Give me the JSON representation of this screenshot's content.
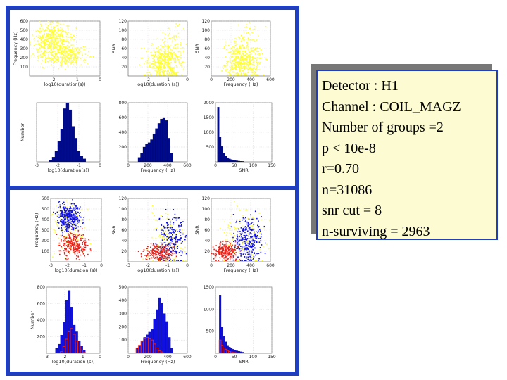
{
  "info": {
    "detector": "Detector : H1",
    "channel": "Channel : COIL_MAGZ",
    "groups": "Number of groups =2",
    "p": "p < 10e-8",
    "r": "r=0.70",
    "n": "n=31086",
    "snr_cut": "snr cut = 8",
    "surviving": "n-surviving = 2963"
  },
  "colors": {
    "frame": "#1f3fbf",
    "yellow": "#ffff33",
    "blue": "#1010e0",
    "red": "#e8221b",
    "dark_blue": "#000a8c",
    "info_bg": "#fcfbd2"
  },
  "chart_data": [
    {
      "id": "t1",
      "type": "scatter",
      "xlabel": "log10(duration(s))",
      "ylabel": "Frequency (Hz)",
      "xticks": [
        "-2",
        "-1",
        "0"
      ],
      "yticks": [
        "100",
        "200",
        "300",
        "400",
        "500",
        "600"
      ],
      "xlim": [
        -3,
        0
      ],
      "ylim": [
        0,
        600
      ],
      "series": [
        {
          "color": "yellow",
          "clusters": [
            {
              "x": -2,
              "y": 350,
              "sx": 0.4,
              "sy": 110,
              "n": 520
            },
            {
              "x": -1.2,
              "y": 220,
              "sx": 0.35,
              "sy": 60,
              "n": 160
            }
          ]
        }
      ]
    },
    {
      "id": "t2",
      "type": "scatter",
      "xlabel": "log10(duration (s))",
      "ylabel": "SNR",
      "xticks": [
        "-2",
        "-1",
        "0"
      ],
      "yticks": [
        "20",
        "40",
        "60",
        "80",
        "100",
        "120"
      ],
      "xlim": [
        -3,
        0
      ],
      "ylim": [
        0,
        120
      ],
      "series": [
        {
          "color": "yellow",
          "clusters": [
            {
              "x": -1.2,
              "y": 30,
              "sx": 0.45,
              "sy": 18,
              "n": 380
            },
            {
              "x": -0.7,
              "y": 70,
              "sx": 0.35,
              "sy": 25,
              "n": 70
            }
          ]
        }
      ]
    },
    {
      "id": "t3",
      "type": "scatter",
      "xlabel": "Frequency (Hz)",
      "ylabel": "SNR",
      "xticks": [
        "0",
        "200",
        "400",
        "600"
      ],
      "yticks": [
        "20",
        "40",
        "60",
        "80",
        "100",
        "120"
      ],
      "xlim": [
        0,
        600
      ],
      "ylim": [
        0,
        120
      ],
      "series": [
        {
          "color": "yellow",
          "clusters": [
            {
              "x": 320,
              "y": 35,
              "sx": 90,
              "sy": 20,
              "n": 420
            },
            {
              "x": 380,
              "y": 80,
              "sx": 70,
              "sy": 25,
              "n": 60
            }
          ]
        }
      ]
    },
    {
      "id": "t4",
      "type": "bar",
      "xlabel": "log10(duration(s))",
      "ylabel": "Number",
      "xticks": [
        "-3",
        "-2",
        "-1",
        "0"
      ],
      "xlim": [
        -3,
        0
      ],
      "yticks": [],
      "ylim": [
        0,
        1
      ],
      "series": [
        {
          "color": "dark_blue",
          "x0": -2.4,
          "step": 0.133,
          "values": [
            0.03,
            0.08,
            0.18,
            0.35,
            0.55,
            0.9,
            1.0,
            0.88,
            0.6,
            0.4,
            0.18,
            0.1,
            0.05
          ]
        }
      ]
    },
    {
      "id": "t5",
      "type": "bar",
      "xlabel": "Frequency (Hz)",
      "ylabel": "",
      "xticks": [
        "0",
        "200",
        "400",
        "600"
      ],
      "yticks": [
        "200",
        "400",
        "600",
        "800"
      ],
      "xlim": [
        0,
        600
      ],
      "ylim": [
        0,
        800
      ],
      "series": [
        {
          "color": "dark_blue",
          "x0": 100,
          "step": 25,
          "values": [
            60,
            120,
            200,
            240,
            260,
            300,
            380,
            450,
            520,
            580,
            600,
            560,
            320,
            120
          ]
        }
      ]
    },
    {
      "id": "t6",
      "type": "bar",
      "xlabel": "SNR",
      "ylabel": "",
      "xticks": [
        "0",
        "50",
        "100",
        "150"
      ],
      "yticks": [
        "500",
        "1000",
        "1500",
        "2000"
      ],
      "xlim": [
        0,
        150
      ],
      "ylim": [
        0,
        2000
      ],
      "series": [
        {
          "color": "dark_blue",
          "x0": 5,
          "step": 5,
          "values": [
            1850,
            850,
            520,
            300,
            200,
            140,
            100,
            80,
            60,
            45,
            35,
            25,
            20,
            15
          ]
        }
      ]
    },
    {
      "id": "b1",
      "type": "scatter",
      "xlabel": "log10(duration (s))",
      "ylabel": "Frequency (Hz)",
      "xticks": [
        "-3",
        "-2",
        "-1",
        "0"
      ],
      "yticks": [
        "100",
        "200",
        "300",
        "400",
        "500",
        "600"
      ],
      "xlim": [
        -3,
        0
      ],
      "ylim": [
        0,
        600
      ],
      "series": [
        {
          "color": "yellow",
          "clusters": [
            {
              "x": -2,
              "y": 330,
              "sx": 0.45,
              "sy": 130,
              "n": 140
            }
          ]
        },
        {
          "color": "blue",
          "clusters": [
            {
              "x": -1.9,
              "y": 430,
              "sx": 0.35,
              "sy": 70,
              "n": 320
            }
          ]
        },
        {
          "color": "red",
          "clusters": [
            {
              "x": -1.6,
              "y": 160,
              "sx": 0.4,
              "sy": 60,
              "n": 240
            }
          ]
        }
      ]
    },
    {
      "id": "b2",
      "type": "scatter",
      "xlabel": "log10(duration (s))",
      "ylabel": "SNR",
      "xticks": [
        "-3",
        "-2",
        "-1",
        "0"
      ],
      "yticks": [
        "20",
        "40",
        "60",
        "80",
        "100",
        "120"
      ],
      "xlim": [
        -3,
        0
      ],
      "ylim": [
        0,
        120
      ],
      "series": [
        {
          "color": "yellow",
          "clusters": [
            {
              "x": -1,
              "y": 40,
              "sx": 0.5,
              "sy": 28,
              "n": 120
            }
          ]
        },
        {
          "color": "blue",
          "clusters": [
            {
              "x": -0.8,
              "y": 45,
              "sx": 0.35,
              "sy": 22,
              "n": 200
            }
          ]
        },
        {
          "color": "red",
          "clusters": [
            {
              "x": -1.4,
              "y": 18,
              "sx": 0.4,
              "sy": 8,
              "n": 200
            }
          ]
        }
      ]
    },
    {
      "id": "b3",
      "type": "scatter",
      "xlabel": "Frequency (Hz)",
      "ylabel": "SNR",
      "xticks": [
        "0",
        "200",
        "400",
        "600"
      ],
      "yticks": [
        "20",
        "40",
        "60",
        "80",
        "100",
        "120"
      ],
      "xlim": [
        0,
        600
      ],
      "ylim": [
        0,
        120
      ],
      "series": [
        {
          "color": "yellow",
          "clusters": [
            {
              "x": 330,
              "y": 45,
              "sx": 110,
              "sy": 30,
              "n": 130
            }
          ]
        },
        {
          "color": "blue",
          "clusters": [
            {
              "x": 380,
              "y": 40,
              "sx": 70,
              "sy": 22,
              "n": 280
            }
          ]
        },
        {
          "color": "red",
          "clusters": [
            {
              "x": 150,
              "y": 20,
              "sx": 60,
              "sy": 9,
              "n": 220
            }
          ]
        }
      ]
    },
    {
      "id": "b4",
      "type": "bar",
      "xlabel": "log10(duration (s))",
      "ylabel": "Number",
      "xticks": [
        "-3",
        "-2",
        "-1",
        "0"
      ],
      "yticks": [
        "200",
        "400",
        "600",
        "800"
      ],
      "xlim": [
        -3,
        0
      ],
      "ylim": [
        0,
        800
      ],
      "series": [
        {
          "color": "blue",
          "x0": -2.5,
          "step": 0.14,
          "values": [
            60,
            110,
            220,
            380,
            640,
            760,
            560,
            340,
            260,
            150,
            90,
            40
          ]
        },
        {
          "color": "red",
          "outline": true,
          "x0": -2.5,
          "step": 0.14,
          "values": [
            0,
            0,
            20,
            80,
            170,
            260,
            300,
            230,
            150,
            90,
            40,
            10
          ]
        }
      ]
    },
    {
      "id": "b5",
      "type": "bar",
      "xlabel": "Frequency (Hz)",
      "ylabel": "",
      "xticks": [
        "0",
        "200",
        "400",
        "600"
      ],
      "yticks": [
        "100",
        "200",
        "300",
        "400",
        "500"
      ],
      "xlim": [
        0,
        600
      ],
      "ylim": [
        0,
        500
      ],
      "series": [
        {
          "color": "blue",
          "x0": 80,
          "step": 25,
          "values": [
            40,
            60,
            90,
            120,
            140,
            160,
            180,
            260,
            330,
            420,
            380,
            300,
            240,
            120,
            40
          ]
        },
        {
          "color": "red",
          "outline": true,
          "x0": 80,
          "step": 25,
          "values": [
            40,
            60,
            90,
            110,
            120,
            110,
            100,
            70,
            40,
            20,
            10,
            0,
            0,
            0,
            0
          ]
        }
      ]
    },
    {
      "id": "b6",
      "type": "bar",
      "xlabel": "SNR",
      "ylabel": "",
      "xticks": [
        "0",
        "50",
        "100",
        "150"
      ],
      "yticks": [
        "500",
        "1000",
        "1500"
      ],
      "xlim": [
        0,
        150
      ],
      "ylim": [
        0,
        1500
      ],
      "series": [
        {
          "color": "blue",
          "x0": 10,
          "step": 5,
          "values": [
            1320,
            600,
            380,
            260,
            180,
            140,
            110,
            90,
            70,
            55,
            45,
            35,
            25
          ]
        },
        {
          "color": "red",
          "outline": true,
          "x0": 10,
          "step": 5,
          "values": [
            300,
            180,
            120,
            90,
            60,
            40,
            30,
            20,
            15,
            10,
            5,
            0,
            0
          ]
        }
      ]
    }
  ]
}
